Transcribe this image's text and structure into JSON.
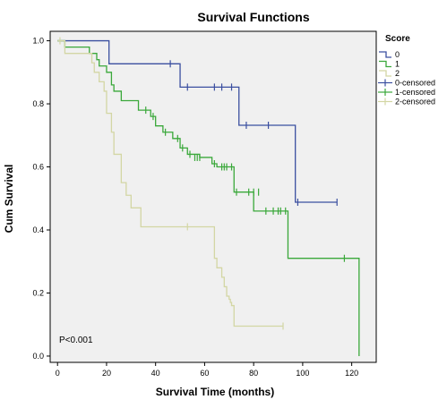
{
  "chart_data": {
    "type": "line",
    "title": "Survival Functions",
    "xlabel": "Survival Time (months)",
    "ylabel": "Cum Survival",
    "xlim": [
      -3,
      130
    ],
    "ylim": [
      -0.02,
      1.03
    ],
    "xticks": [
      0,
      20,
      40,
      60,
      80,
      100,
      120
    ],
    "yticks": [
      0.0,
      0.2,
      0.4,
      0.6,
      0.8,
      1.0
    ],
    "xtick_labels": [
      "0",
      "20",
      "40",
      "60",
      "80",
      "100",
      "120"
    ],
    "ytick_labels": [
      "0.0",
      "0.2",
      "0.4",
      "0.6",
      "0.8",
      "1.0"
    ],
    "annotation": "P<0.001",
    "legend": {
      "title": "Score",
      "placement": "right",
      "entries": [
        {
          "label": "0",
          "kind": "line",
          "color": "#3b4fa0"
        },
        {
          "label": "1",
          "kind": "line",
          "color": "#3aa83a"
        },
        {
          "label": "2",
          "kind": "line",
          "color": "#d3d6a4"
        },
        {
          "label": "0-censored",
          "kind": "censor",
          "color": "#3b4fa0"
        },
        {
          "label": "1-censored",
          "kind": "censor",
          "color": "#3aa83a"
        },
        {
          "label": "2-censored",
          "kind": "censor",
          "color": "#d3d6a4"
        }
      ]
    },
    "series": [
      {
        "name": "0",
        "color": "#3b4fa0",
        "steps": [
          [
            0,
            1.0
          ],
          [
            21,
            0.927
          ],
          [
            50,
            0.853
          ],
          [
            74,
            0.732
          ],
          [
            97,
            0.488
          ],
          [
            114,
            0.488
          ]
        ],
        "censored": [
          [
            46,
            0.927
          ],
          [
            53,
            0.853
          ],
          [
            64,
            0.853
          ],
          [
            67,
            0.853
          ],
          [
            71,
            0.853
          ],
          [
            77,
            0.732
          ],
          [
            86,
            0.732
          ],
          [
            98,
            0.488
          ],
          [
            114,
            0.488
          ]
        ]
      },
      {
        "name": "1",
        "color": "#3aa83a",
        "steps": [
          [
            0,
            1.0
          ],
          [
            3,
            0.98
          ],
          [
            13,
            0.96
          ],
          [
            16,
            0.94
          ],
          [
            17,
            0.92
          ],
          [
            20,
            0.9
          ],
          [
            22,
            0.86
          ],
          [
            23,
            0.84
          ],
          [
            26,
            0.81
          ],
          [
            33,
            0.78
          ],
          [
            38,
            0.76
          ],
          [
            40,
            0.73
          ],
          [
            43,
            0.71
          ],
          [
            47,
            0.69
          ],
          [
            50,
            0.66
          ],
          [
            53,
            0.64
          ],
          [
            58,
            0.63
          ],
          [
            63,
            0.61
          ],
          [
            65,
            0.6
          ],
          [
            72,
            0.52
          ],
          [
            80,
            0.46
          ],
          [
            94,
            0.31
          ],
          [
            123,
            0.0
          ]
        ],
        "censored": [
          [
            36,
            0.78
          ],
          [
            39,
            0.76
          ],
          [
            44,
            0.71
          ],
          [
            49,
            0.69
          ],
          [
            51,
            0.66
          ],
          [
            54,
            0.64
          ],
          [
            56,
            0.63
          ],
          [
            57,
            0.63
          ],
          [
            58,
            0.63
          ],
          [
            64,
            0.61
          ],
          [
            67,
            0.6
          ],
          [
            68,
            0.6
          ],
          [
            69,
            0.6
          ],
          [
            71,
            0.6
          ],
          [
            73,
            0.52
          ],
          [
            78,
            0.52
          ],
          [
            80,
            0.52
          ],
          [
            82,
            0.52
          ],
          [
            85,
            0.46
          ],
          [
            88,
            0.46
          ],
          [
            90,
            0.46
          ],
          [
            91,
            0.46
          ],
          [
            93,
            0.46
          ],
          [
            117,
            0.31
          ]
        ]
      },
      {
        "name": "2",
        "color": "#d3d6a4",
        "steps": [
          [
            0,
            1.0
          ],
          [
            3,
            0.96
          ],
          [
            14,
            0.93
          ],
          [
            15,
            0.9
          ],
          [
            17,
            0.87
          ],
          [
            19,
            0.84
          ],
          [
            20,
            0.77
          ],
          [
            22,
            0.71
          ],
          [
            23,
            0.64
          ],
          [
            26,
            0.55
          ],
          [
            28,
            0.51
          ],
          [
            30,
            0.47
          ],
          [
            34,
            0.41
          ],
          [
            64,
            0.31
          ],
          [
            65,
            0.28
          ],
          [
            67,
            0.25
          ],
          [
            68,
            0.22
          ],
          [
            69,
            0.19
          ],
          [
            70,
            0.18
          ],
          [
            70.5,
            0.17
          ],
          [
            71,
            0.16
          ],
          [
            72,
            0.095
          ],
          [
            92,
            0.095
          ]
        ],
        "censored": [
          [
            1,
            1.0
          ],
          [
            53,
            0.41
          ],
          [
            92,
            0.095
          ]
        ]
      }
    ]
  }
}
